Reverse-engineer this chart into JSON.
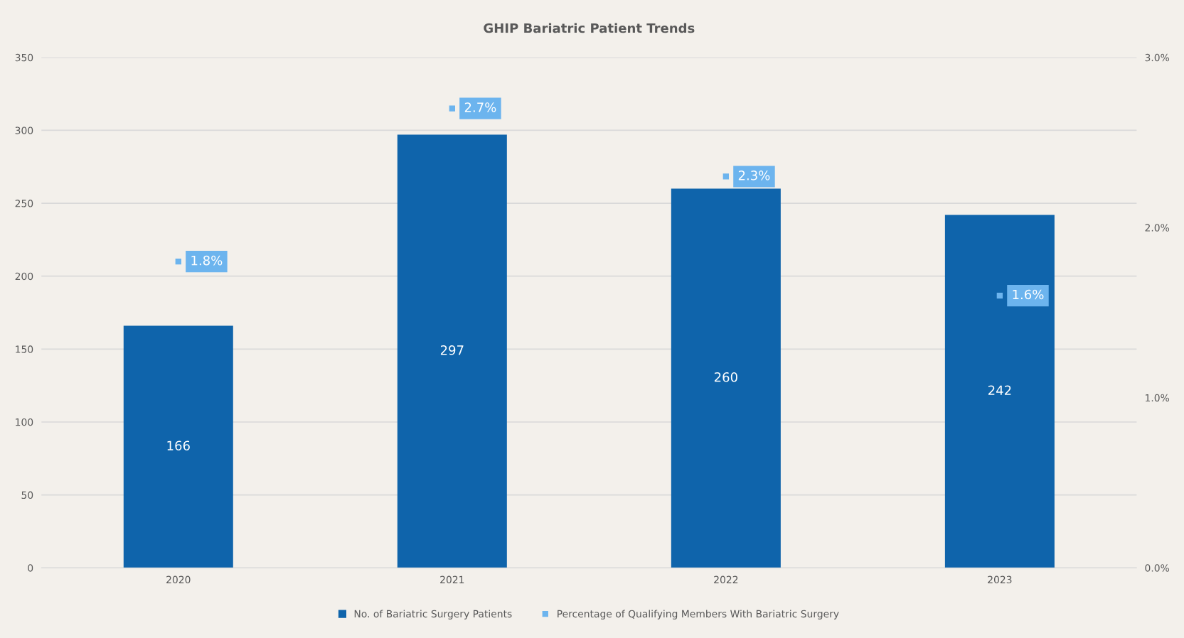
{
  "chart_data": {
    "type": "bar",
    "title": "GHIP Bariatric Patient Trends",
    "categories": [
      "2020",
      "2021",
      "2022",
      "2023"
    ],
    "series": [
      {
        "name": "No. of Bariatric Surgery Patients",
        "color": "#0f64ab",
        "values": [
          166,
          297,
          260,
          242
        ],
        "value_labels": [
          "166",
          "297",
          "260",
          "242"
        ]
      },
      {
        "name": "Percentage of Qualifying Members With Bariatric Surgery",
        "type": "scatter",
        "axis": "y2",
        "marker": "square",
        "color": "#6cb4ee",
        "values": [
          1.8,
          2.7,
          2.3,
          1.6
        ],
        "value_labels": [
          "1.8%",
          "2.7%",
          "2.3%",
          "1.6%"
        ]
      }
    ],
    "ylim": [
      0,
      350
    ],
    "yticks": [
      0,
      50,
      100,
      150,
      200,
      250,
      300,
      350
    ],
    "y2lim": [
      0,
      3.0
    ],
    "y2ticks": [
      {
        "value": 0,
        "label": "0.0%"
      },
      {
        "value": 1,
        "label": "1.0%"
      },
      {
        "value": 2,
        "label": "2.0%"
      },
      {
        "value": 3,
        "label": "3.0%"
      }
    ],
    "grid": "y",
    "legend": "bottom"
  }
}
